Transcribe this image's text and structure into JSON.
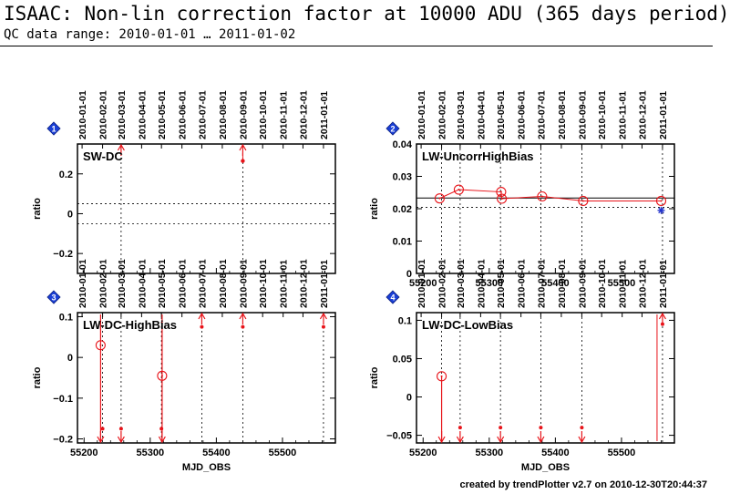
{
  "page": {
    "title": "ISAAC: Non-lin correction factor at 10000 ADU (365 days period)",
    "subtitle": "QC data range: 2010-01-01 … 2011-01-02",
    "footer": "created by trendPlotter v2.7 on 2010-12-30T20:44:37"
  },
  "colors": {
    "data": "#e8141a",
    "reference": "#000000",
    "badge": "#1a3fd6",
    "outlier_star": "#2233cc"
  },
  "date_labels": [
    "2010-01-01",
    "2010-02-01",
    "2010-03-01",
    "2010-04-01",
    "2010-05-01",
    "2010-06-01",
    "2010-07-01",
    "2010-08-01",
    "2010-09-01",
    "2010-10-01",
    "2010-11-01",
    "2010-12-01",
    "2011-01-01"
  ],
  "date_mjd": [
    55197,
    55228,
    55256,
    55287,
    55317,
    55348,
    55378,
    55409,
    55440,
    55470,
    55501,
    55531,
    55562
  ],
  "chart_data": [
    {
      "type": "line",
      "panel": "1",
      "label": "SW-DC",
      "xlabel": "",
      "ylabel": "ratio",
      "xlim": [
        55190,
        55580
      ],
      "ylim": [
        -0.3,
        0.35
      ],
      "xticks": [
        55200,
        55300,
        55400,
        55500
      ],
      "yticks": [
        -0.2,
        0,
        0.2
      ],
      "ytick_labels": [
        "−0.2",
        "0",
        "0.2"
      ],
      "show_x_tick_labels": false,
      "reference_lines": [
        {
          "y": 0.05,
          "style": "dotted"
        },
        {
          "y": -0.05,
          "style": "dotted"
        }
      ],
      "date_gridlines": [
        55256,
        55440
      ],
      "series": [
        {
          "x": [
            55440
          ],
          "y": [
            0.265
          ],
          "marker": "dot"
        }
      ],
      "offscale_up": [
        55256,
        55440
      ],
      "offscale_down": []
    },
    {
      "type": "line",
      "panel": "2",
      "label": "LW-UncorrHighBias",
      "xlabel": "",
      "ylabel": "ratio",
      "xlim": [
        55190,
        55580
      ],
      "ylim": [
        0,
        0.04
      ],
      "xticks": [
        55200,
        55300,
        55400,
        55500
      ],
      "yticks": [
        0,
        0.01,
        0.02,
        0.03,
        0.04
      ],
      "ytick_labels": [
        "0",
        "0.01",
        "0.02",
        "0.03",
        "0.04"
      ],
      "show_x_tick_labels": true,
      "reference_lines": [
        {
          "y": 0.0233,
          "style": "solid"
        },
        {
          "y": 0.0204,
          "style": "dotted"
        }
      ],
      "date_gridlines": [
        55228,
        55256,
        55317,
        55378,
        55440,
        55562
      ],
      "series": [
        {
          "x": [
            55225,
            55254,
            55318,
            55319,
            55380,
            55442,
            55560
          ],
          "y": [
            0.0232,
            0.0259,
            0.0252,
            0.0231,
            0.0238,
            0.0224,
            0.0224
          ],
          "marker": "circle"
        }
      ],
      "outliers": [
        {
          "x": 55560,
          "y": 0.0195
        }
      ],
      "offscale_up": [],
      "offscale_down": []
    },
    {
      "type": "line",
      "panel": "3",
      "label": "LW-DC-HighBias",
      "xlabel": "MJD_OBS",
      "ylabel": "ratio",
      "xlim": [
        55190,
        55580
      ],
      "ylim": [
        -0.21,
        0.11
      ],
      "xticks": [
        55200,
        55300,
        55400,
        55500
      ],
      "yticks": [
        -0.2,
        -0.1,
        0,
        0.1
      ],
      "ytick_labels": [
        "−0.2",
        "−0.1",
        "0",
        "0.1"
      ],
      "show_x_tick_labels": true,
      "reference_lines": [],
      "date_gridlines": [
        55228,
        55256,
        55317,
        55378,
        55440,
        55562
      ],
      "series": [
        {
          "x": [
            55225,
            55318
          ],
          "y": [
            0.03,
            -0.045
          ],
          "marker": "circle"
        }
      ],
      "offscale_up": [
        55378,
        55440,
        55562
      ],
      "offscale_down": [
        55225,
        55256,
        55318
      ],
      "annotations": [
        "red dots near -0.175 at 55228, 55256, 55317"
      ]
    },
    {
      "type": "line",
      "panel": "4",
      "label": "LW-DC-LowBias",
      "xlabel": "MJD_OBS",
      "ylabel": "ratio",
      "xlim": [
        55190,
        55580
      ],
      "ylim": [
        -0.06,
        0.11
      ],
      "xticks": [
        55200,
        55300,
        55400,
        55500
      ],
      "yticks": [
        -0.05,
        0,
        0.05,
        0.1
      ],
      "ytick_labels": [
        "−0.05",
        "0",
        "0.05",
        "0.1"
      ],
      "show_x_tick_labels": true,
      "reference_lines": [],
      "date_gridlines": [
        55228,
        55256,
        55317,
        55378,
        55440,
        55562
      ],
      "series": [
        {
          "x": [
            55228
          ],
          "y": [
            0.027
          ],
          "marker": "circle"
        }
      ],
      "offscale_up": [
        55562
      ],
      "offscale_down": [
        55228,
        55256,
        55317,
        55378,
        55440
      ]
    }
  ]
}
